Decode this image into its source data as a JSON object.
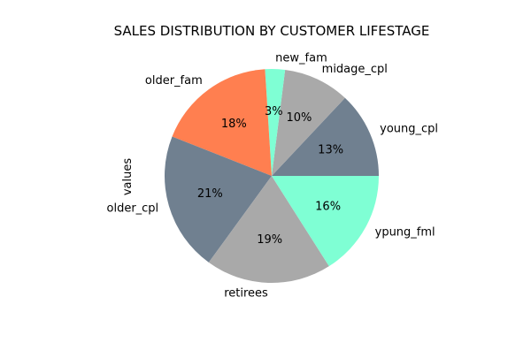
{
  "chart_data": {
    "type": "pie",
    "title": "SALES DISTRIBUTION BY CUSTOMER LIFESTAGE",
    "ylabel": "values",
    "start_angle_deg": 0,
    "direction": "counterclockwise",
    "slices": [
      {
        "label": "young_cpl",
        "value": 13,
        "pct_label": "13%",
        "color": "#708090"
      },
      {
        "label": "midage_cpl",
        "value": 10,
        "pct_label": "10%",
        "color": "#a9a9a9"
      },
      {
        "label": "new_fam",
        "value": 3,
        "pct_label": "3%",
        "color": "#7fffd4"
      },
      {
        "label": "older_fam",
        "value": 18,
        "pct_label": "18%",
        "color": "#ff7f50"
      },
      {
        "label": "older_cpl",
        "value": 21,
        "pct_label": "21%",
        "color": "#708090"
      },
      {
        "label": "retirees",
        "value": 19,
        "pct_label": "19%",
        "color": "#a9a9a9"
      },
      {
        "label": "ypung_fml",
        "value": 16,
        "pct_label": "16%",
        "color": "#7fffd4"
      }
    ]
  }
}
